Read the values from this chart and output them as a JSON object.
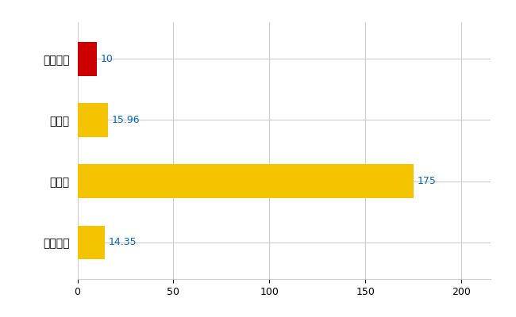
{
  "categories": [
    "大野城市",
    "県平均",
    "県最大",
    "全国平均"
  ],
  "values": [
    10,
    15.96,
    175,
    14.35
  ],
  "bar_colors": [
    "#cc0000",
    "#f5c400",
    "#f5c400",
    "#f5c400"
  ],
  "value_labels": [
    "10",
    "15.96",
    "175",
    "14.35"
  ],
  "xlim": [
    0,
    215
  ],
  "xticks": [
    0,
    50,
    100,
    150,
    200
  ],
  "background_color": "#ffffff",
  "grid_color": "#cccccc",
  "label_color": "#0066cc",
  "bar_height": 0.55,
  "figsize": [
    6.5,
    4.0
  ],
  "dpi": 100
}
